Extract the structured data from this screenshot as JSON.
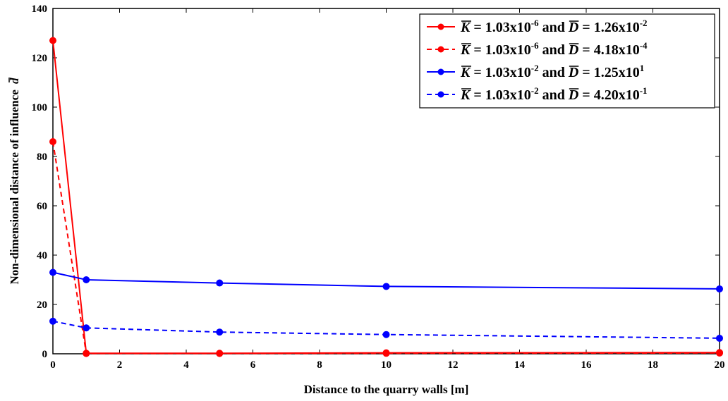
{
  "chart_data": {
    "type": "line",
    "title": "",
    "xlabel": "Distance to the quarry walls [m]",
    "ylabel": "Non-dimensional distance of influence",
    "ylabel_symbol": "d",
    "xlim": [
      0,
      20
    ],
    "ylim": [
      0,
      140
    ],
    "xticks": [
      0,
      2,
      4,
      6,
      8,
      10,
      12,
      14,
      16,
      18,
      20
    ],
    "yticks": [
      0,
      20,
      40,
      60,
      80,
      100,
      120,
      140
    ],
    "grid": false,
    "legend_position": "top-right",
    "x": [
      0,
      1,
      5,
      10,
      20
    ],
    "series": [
      {
        "name": "K = 1.03x10-6 and D = 1.26x10-2",
        "legend": {
          "k_sym": "K",
          "k_base": " = 1.03x10",
          "k_exp": "-6",
          "mid": " and ",
          "d_sym": "D",
          "d_base": " = 1.26x10",
          "d_exp": "-2"
        },
        "values": [
          127,
          0.2,
          0.2,
          0.4,
          0.5
        ],
        "color": "#ff0000",
        "dash": "solid"
      },
      {
        "name": "K = 1.03x10-6 and D = 4.18x10-4",
        "legend": {
          "k_sym": "K",
          "k_base": " = 1.03x10",
          "k_exp": "-6",
          "mid": " and ",
          "d_sym": "D",
          "d_base": " = 4.18x10",
          "d_exp": "-4"
        },
        "values": [
          86,
          0.1,
          0.1,
          0.2,
          0.3
        ],
        "color": "#ff0000",
        "dash": "dashed"
      },
      {
        "name": "K = 1.03x10-2 and D = 1.25x101",
        "legend": {
          "k_sym": "K",
          "k_base": " = 1.03x10",
          "k_exp": "-2",
          "mid": " and ",
          "d_sym": "D",
          "d_base": " = 1.25x10",
          "d_exp": "1"
        },
        "values": [
          33,
          30,
          28.7,
          27.3,
          26.3
        ],
        "color": "#0000ff",
        "dash": "solid"
      },
      {
        "name": "K = 1.03x10-2 and D = 4.20x10-1",
        "legend": {
          "k_sym": "K",
          "k_base": " = 1.03x10",
          "k_exp": "-2",
          "mid": " and ",
          "d_sym": "D",
          "d_base": " = 4.20x10",
          "d_exp": "-1"
        },
        "values": [
          13.2,
          10.5,
          8.8,
          7.8,
          6.3
        ],
        "color": "#0000ff",
        "dash": "dashed"
      }
    ]
  }
}
